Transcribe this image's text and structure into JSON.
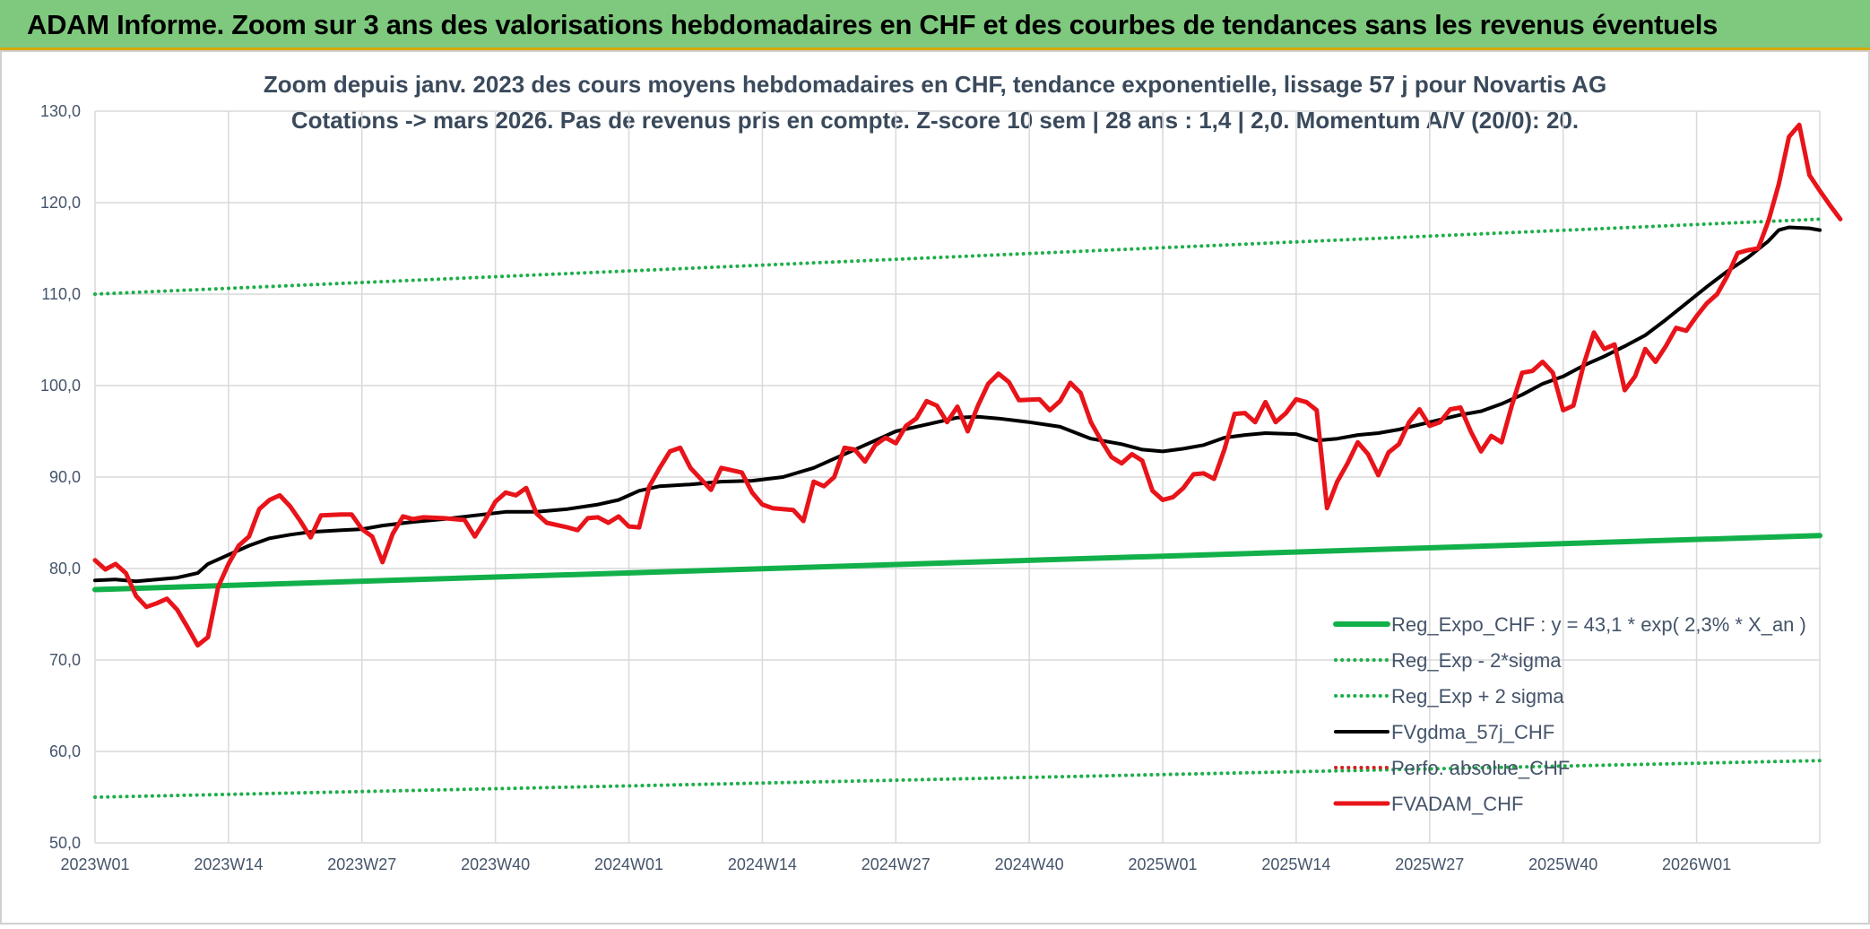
{
  "banner": {
    "title": "ADAM Informe. Zoom sur 3 ans des valorisations hebdomadaires en CHF et des courbes de tendances sans les revenus éventuels"
  },
  "colors": {
    "banner_bg": "#7ec97e",
    "reg_expo": "#12b04a",
    "sigma": "#1fae4a",
    "fvgdma": "#000000",
    "perfo": "#d42020",
    "fvadam": "#e8141a"
  },
  "chart_data": {
    "type": "line",
    "title": "Zoom depuis janv. 2023 des cours moyens hebdomadaires en CHF, tendance exponentielle, lissage 57 j pour Novartis AG",
    "subtitle": "Cotations -> mars 2026. Pas de revenus pris en compte. Z-score 10 sem | 28 ans : 1,4 | 2,0. Momentum A/V (20/0): 20.",
    "xlabel": "",
    "ylabel": "",
    "ylim": [
      50,
      130
    ],
    "y_ticks": [
      "50,0",
      "60,0",
      "70,0",
      "80,0",
      "90,0",
      "100,0",
      "110,0",
      "120,0",
      "130,0"
    ],
    "x_range_weeks": [
      0,
      168
    ],
    "x_ticks": [
      {
        "label": "2023W01",
        "week": 0
      },
      {
        "label": "2023W14",
        "week": 13
      },
      {
        "label": "2023W27",
        "week": 26
      },
      {
        "label": "2023W40",
        "week": 39
      },
      {
        "label": "2024W01",
        "week": 52
      },
      {
        "label": "2024W14",
        "week": 65
      },
      {
        "label": "2024W27",
        "week": 78
      },
      {
        "label": "2024W40",
        "week": 91
      },
      {
        "label": "2025W01",
        "week": 104
      },
      {
        "label": "2025W14",
        "week": 117
      },
      {
        "label": "2025W27",
        "week": 130
      },
      {
        "label": "2025W40",
        "week": 143
      },
      {
        "label": "2026W01",
        "week": 156
      }
    ],
    "grid": true,
    "legend_position": "bottom-right",
    "series": [
      {
        "name": "Reg_Expo_CHF : y = 43,1 * exp( 2,3% *  X_an )",
        "style": "solid-thick",
        "color": "#12b04a",
        "points": [
          [
            0,
            77.7
          ],
          [
            168,
            83.6
          ]
        ]
      },
      {
        "name": "Reg_Exp - 2*sigma",
        "style": "dotted",
        "color": "#1fae4a",
        "points": [
          [
            0,
            55.0
          ],
          [
            168,
            59.0
          ]
        ]
      },
      {
        "name": "Reg_Exp + 2 sigma",
        "style": "dotted",
        "color": "#1fae4a",
        "points": [
          [
            0,
            110.0
          ],
          [
            168,
            118.2
          ]
        ]
      },
      {
        "name": "FVgdma_57j_CHF",
        "style": "solid",
        "color": "#000000",
        "points": [
          [
            0,
            78.7
          ],
          [
            2,
            78.8
          ],
          [
            4,
            78.6
          ],
          [
            6,
            78.8
          ],
          [
            8,
            79.0
          ],
          [
            10,
            79.5
          ],
          [
            11,
            80.5
          ],
          [
            13,
            81.5
          ],
          [
            15,
            82.5
          ],
          [
            17,
            83.3
          ],
          [
            19,
            83.7
          ],
          [
            21,
            84.0
          ],
          [
            24,
            84.2
          ],
          [
            26,
            84.3
          ],
          [
            28,
            84.7
          ],
          [
            31,
            85.1
          ],
          [
            34,
            85.4
          ],
          [
            37,
            85.8
          ],
          [
            40,
            86.2
          ],
          [
            43,
            86.2
          ],
          [
            46,
            86.5
          ],
          [
            49,
            87.0
          ],
          [
            51,
            87.5
          ],
          [
            53,
            88.5
          ],
          [
            55,
            89.0
          ],
          [
            58,
            89.2
          ],
          [
            61,
            89.5
          ],
          [
            64,
            89.6
          ],
          [
            67,
            90.0
          ],
          [
            70,
            91.0
          ],
          [
            72,
            92.0
          ],
          [
            74,
            93.0
          ],
          [
            76,
            94.0
          ],
          [
            78,
            95.0
          ],
          [
            80,
            95.5
          ],
          [
            82,
            96.0
          ],
          [
            84,
            96.5
          ],
          [
            86,
            96.6
          ],
          [
            88,
            96.4
          ],
          [
            91,
            96.0
          ],
          [
            94,
            95.5
          ],
          [
            97,
            94.2
          ],
          [
            100,
            93.6
          ],
          [
            102,
            93.0
          ],
          [
            104,
            92.8
          ],
          [
            106,
            93.1
          ],
          [
            108,
            93.5
          ],
          [
            110,
            94.3
          ],
          [
            112,
            94.6
          ],
          [
            114,
            94.8
          ],
          [
            117,
            94.7
          ],
          [
            119,
            94.0
          ],
          [
            121,
            94.2
          ],
          [
            123,
            94.6
          ],
          [
            125,
            94.8
          ],
          [
            127,
            95.2
          ],
          [
            130,
            96.0
          ],
          [
            133,
            96.8
          ],
          [
            135,
            97.2
          ],
          [
            137,
            98.0
          ],
          [
            139,
            99.0
          ],
          [
            141,
            100.2
          ],
          [
            143,
            101.0
          ],
          [
            145,
            102.2
          ],
          [
            147,
            103.2
          ],
          [
            149,
            104.3
          ],
          [
            151,
            105.5
          ],
          [
            153,
            107.2
          ],
          [
            155,
            109.0
          ],
          [
            157,
            110.8
          ],
          [
            159,
            112.5
          ],
          [
            161,
            114.0
          ],
          [
            163,
            115.8
          ],
          [
            164,
            117.0
          ],
          [
            165,
            117.3
          ],
          [
            167,
            117.2
          ],
          [
            168,
            117.0
          ]
        ]
      },
      {
        "name": "Perfo. absolue_CHF",
        "style": "dotted",
        "color": "#d42020",
        "points": []
      },
      {
        "name": "FVADAM_CHF",
        "style": "solid-thick",
        "color": "#e8141a",
        "points": [
          [
            0,
            80.9
          ],
          [
            1,
            79.9
          ],
          [
            2,
            80.5
          ],
          [
            3,
            79.5
          ],
          [
            4,
            77.0
          ],
          [
            5,
            75.8
          ],
          [
            6,
            76.2
          ],
          [
            7,
            76.7
          ],
          [
            8,
            75.5
          ],
          [
            9,
            73.6
          ],
          [
            10,
            71.6
          ],
          [
            11,
            72.5
          ],
          [
            12,
            78.0
          ],
          [
            13,
            80.5
          ],
          [
            14,
            82.5
          ],
          [
            15,
            83.5
          ],
          [
            16,
            86.5
          ],
          [
            17,
            87.5
          ],
          [
            18,
            88.0
          ],
          [
            19,
            86.8
          ],
          [
            20,
            85.2
          ],
          [
            21,
            83.4
          ],
          [
            22,
            85.8
          ],
          [
            24,
            85.9
          ],
          [
            25,
            85.9
          ],
          [
            26,
            84.3
          ],
          [
            27,
            83.5
          ],
          [
            28,
            80.7
          ],
          [
            29,
            83.8
          ],
          [
            30,
            85.7
          ],
          [
            31,
            85.4
          ],
          [
            32,
            85.6
          ],
          [
            34,
            85.5
          ],
          [
            36,
            85.3
          ],
          [
            37,
            83.5
          ],
          [
            38,
            85.3
          ],
          [
            39,
            87.3
          ],
          [
            40,
            88.3
          ],
          [
            41,
            88.0
          ],
          [
            42,
            88.8
          ],
          [
            43,
            86.0
          ],
          [
            44,
            85.0
          ],
          [
            46,
            84.5
          ],
          [
            47,
            84.2
          ],
          [
            48,
            85.5
          ],
          [
            49,
            85.6
          ],
          [
            50,
            85.0
          ],
          [
            51,
            85.7
          ],
          [
            52,
            84.6
          ],
          [
            53,
            84.5
          ],
          [
            54,
            89.0
          ],
          [
            55,
            91.0
          ],
          [
            56,
            92.8
          ],
          [
            57,
            93.2
          ],
          [
            58,
            91.0
          ],
          [
            60,
            88.6
          ],
          [
            61,
            91.0
          ],
          [
            63,
            90.5
          ],
          [
            64,
            88.3
          ],
          [
            65,
            87.0
          ],
          [
            66,
            86.6
          ],
          [
            68,
            86.4
          ],
          [
            69,
            85.2
          ],
          [
            70,
            89.5
          ],
          [
            71,
            89.0
          ],
          [
            72,
            90.0
          ],
          [
            73,
            93.2
          ],
          [
            74,
            93.0
          ],
          [
            75,
            91.7
          ],
          [
            76,
            93.5
          ],
          [
            77,
            94.3
          ],
          [
            78,
            93.7
          ],
          [
            79,
            95.6
          ],
          [
            80,
            96.4
          ],
          [
            81,
            98.3
          ],
          [
            82,
            97.8
          ],
          [
            83,
            96.0
          ],
          [
            84,
            97.7
          ],
          [
            85,
            95.0
          ],
          [
            86,
            97.8
          ],
          [
            87,
            100.2
          ],
          [
            88,
            101.3
          ],
          [
            89,
            100.4
          ],
          [
            90,
            98.4
          ],
          [
            92,
            98.5
          ],
          [
            93,
            97.3
          ],
          [
            94,
            98.3
          ],
          [
            95,
            100.3
          ],
          [
            96,
            99.2
          ],
          [
            97,
            96.0
          ],
          [
            98,
            94.0
          ],
          [
            99,
            92.2
          ],
          [
            100,
            91.5
          ],
          [
            101,
            92.5
          ],
          [
            102,
            91.8
          ],
          [
            103,
            88.5
          ],
          [
            104,
            87.5
          ],
          [
            105,
            87.8
          ],
          [
            106,
            88.8
          ],
          [
            107,
            90.3
          ],
          [
            108,
            90.4
          ],
          [
            109,
            89.8
          ],
          [
            110,
            93.0
          ],
          [
            111,
            96.9
          ],
          [
            112,
            97.0
          ],
          [
            113,
            96.0
          ],
          [
            114,
            98.2
          ],
          [
            115,
            96.0
          ],
          [
            116,
            97.0
          ],
          [
            117,
            98.5
          ],
          [
            118,
            98.2
          ],
          [
            119,
            97.3
          ],
          [
            120,
            86.6
          ],
          [
            121,
            89.5
          ],
          [
            122,
            91.5
          ],
          [
            123,
            93.8
          ],
          [
            124,
            92.5
          ],
          [
            125,
            90.2
          ],
          [
            126,
            92.7
          ],
          [
            127,
            93.6
          ],
          [
            128,
            96.0
          ],
          [
            129,
            97.4
          ],
          [
            130,
            95.6
          ],
          [
            131,
            96.0
          ],
          [
            132,
            97.4
          ],
          [
            133,
            97.6
          ],
          [
            134,
            95.0
          ],
          [
            135,
            92.8
          ],
          [
            136,
            94.5
          ],
          [
            137,
            93.8
          ],
          [
            138,
            97.8
          ],
          [
            139,
            101.4
          ],
          [
            140,
            101.6
          ],
          [
            141,
            102.6
          ],
          [
            142,
            101.4
          ],
          [
            143,
            97.3
          ],
          [
            144,
            97.8
          ],
          [
            145,
            102.3
          ],
          [
            146,
            105.8
          ],
          [
            147,
            104.0
          ],
          [
            148,
            104.5
          ],
          [
            149,
            99.5
          ],
          [
            150,
            101.0
          ],
          [
            151,
            104.0
          ],
          [
            152,
            102.6
          ],
          [
            153,
            104.3
          ],
          [
            154,
            106.3
          ],
          [
            155,
            106.0
          ],
          [
            156,
            107.6
          ],
          [
            157,
            109.0
          ],
          [
            158,
            110.0
          ],
          [
            159,
            112.0
          ],
          [
            160,
            114.5
          ],
          [
            161,
            114.8
          ],
          [
            162,
            115.0
          ],
          [
            163,
            118.0
          ],
          [
            164,
            122.0
          ],
          [
            165,
            127.2
          ],
          [
            166,
            128.5
          ],
          [
            167,
            123.0
          ],
          [
            168,
            121.3
          ],
          [
            169,
            119.7
          ],
          [
            170,
            118.2
          ]
        ]
      }
    ]
  }
}
